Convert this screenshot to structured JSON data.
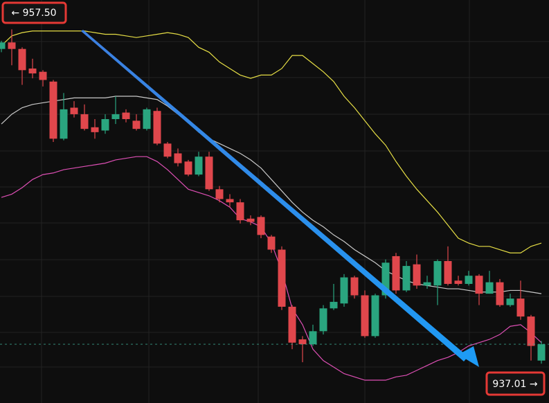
{
  "chart_data": {
    "type": "candlestick",
    "up_color": "#2aa57f",
    "down_color": "#e0474c",
    "open": [
      956.3,
      956.7,
      956.3,
      955.1,
      954.9,
      954.3,
      950.8,
      952.7,
      952.3,
      951.5,
      951.3,
      952.0,
      952.4,
      951.9,
      951.4,
      952.5,
      950.5,
      949.9,
      949.4,
      948.6,
      949.7,
      947.7,
      947.1,
      946.9,
      945.9,
      946.0,
      944.8,
      944.0,
      940.5,
      938.5,
      938.2,
      939.0,
      940.4,
      940.7,
      942.3,
      941.2,
      938.7,
      941.2,
      943.6,
      941.5,
      943.1,
      941.8,
      941.8,
      943.3,
      942.1,
      941.9,
      942.4,
      941.3,
      942.0,
      940.6,
      941.0,
      939.9,
      937.2
    ],
    "high": [
      956.8,
      957.5,
      956.4,
      955.7,
      955.0,
      954.4,
      953.6,
      953.1,
      952.9,
      952.0,
      952.3,
      953.4,
      952.6,
      952.3,
      952.7,
      952.7,
      950.6,
      950.2,
      949.5,
      950.0,
      950.0,
      947.9,
      947.4,
      947.1,
      946.1,
      946.1,
      944.9,
      944.2,
      940.6,
      938.7,
      939.4,
      940.6,
      941.9,
      942.5,
      942.4,
      941.5,
      941.3,
      943.4,
      943.8,
      943.3,
      943.7,
      942.4,
      943.4,
      944.2,
      942.4,
      942.7,
      942.5,
      942.7,
      942.2,
      941.3,
      942.1,
      940.0,
      938.4
    ],
    "low": [
      956.1,
      955.3,
      954.1,
      954.5,
      954.0,
      950.6,
      950.7,
      952.1,
      951.3,
      950.8,
      951.1,
      951.7,
      951.8,
      951.3,
      951.3,
      950.4,
      949.6,
      949.1,
      948.5,
      948.5,
      947.6,
      946.9,
      946.6,
      945.6,
      945.5,
      944.7,
      943.8,
      940.3,
      937.9,
      937.1,
      938.1,
      938.8,
      940.3,
      940.5,
      941.0,
      938.6,
      938.6,
      941.0,
      941.3,
      941.4,
      941.6,
      941.6,
      940.6,
      941.8,
      941.8,
      941.8,
      940.6,
      941.3,
      940.5,
      940.5,
      939.7,
      937.2,
      937.01
    ],
    "close": [
      956.7,
      956.3,
      955.0,
      954.8,
      954.4,
      950.8,
      952.6,
      952.3,
      951.4,
      951.2,
      952.0,
      952.3,
      952.0,
      951.4,
      952.6,
      950.5,
      949.7,
      949.3,
      948.6,
      949.7,
      947.7,
      947.1,
      946.9,
      945.8,
      945.7,
      944.9,
      944.0,
      940.5,
      938.3,
      938.2,
      939.0,
      940.4,
      940.8,
      942.3,
      941.2,
      938.7,
      941.2,
      943.2,
      941.5,
      943.0,
      941.8,
      942.0,
      943.3,
      941.9,
      941.9,
      942.4,
      941.3,
      942.0,
      940.6,
      941.0,
      939.9,
      938.1,
      938.2
    ],
    "bands": [
      {
        "color": "#e6de45",
        "values": [
          956.5,
          957.1,
          957.3,
          957.4,
          957.4,
          957.4,
          957.4,
          957.4,
          957.4,
          957.3,
          957.2,
          957.2,
          957.1,
          957.0,
          957.1,
          957.2,
          957.3,
          957.2,
          957.0,
          956.4,
          956.1,
          955.5,
          955.1,
          954.7,
          954.5,
          954.7,
          954.7,
          955.1,
          955.9,
          955.9,
          955.4,
          954.9,
          954.3,
          953.4,
          952.7,
          951.9,
          951.1,
          950.4,
          949.4,
          948.5,
          947.7,
          947.0,
          946.3,
          945.5,
          944.7,
          944.4,
          944.2,
          944.2,
          944.0,
          943.8,
          943.8,
          944.2,
          944.4
        ]
      },
      {
        "color": "#c9c9c9",
        "values": [
          951.7,
          952.3,
          952.7,
          952.9,
          953.0,
          953.1,
          953.2,
          953.3,
          953.3,
          953.3,
          953.3,
          953.4,
          953.4,
          953.4,
          953.3,
          953.2,
          952.8,
          952.3,
          951.8,
          951.2,
          950.8,
          950.5,
          950.2,
          949.9,
          949.5,
          949.0,
          948.3,
          947.6,
          946.9,
          946.3,
          945.8,
          945.4,
          944.9,
          944.5,
          944.0,
          943.6,
          943.2,
          942.7,
          942.4,
          942.1,
          941.9,
          941.8,
          941.7,
          941.6,
          941.6,
          941.5,
          941.4,
          941.4,
          941.4,
          941.5,
          941.5,
          941.4,
          941.3
        ]
      },
      {
        "color": "#dd4fb4",
        "values": [
          947.2,
          947.4,
          947.8,
          948.3,
          948.6,
          948.7,
          948.9,
          949.0,
          949.1,
          949.2,
          949.3,
          949.5,
          949.6,
          949.7,
          949.7,
          949.4,
          948.9,
          948.3,
          947.7,
          947.5,
          947.3,
          947.0,
          946.6,
          945.9,
          945.7,
          945.4,
          944.4,
          942.7,
          940.4,
          939.4,
          937.9,
          937.2,
          936.8,
          936.4,
          936.2,
          936.0,
          936.0,
          936.0,
          936.2,
          936.3,
          936.6,
          936.9,
          937.2,
          937.4,
          937.7,
          938.1,
          938.3,
          938.5,
          938.8,
          939.3,
          939.4,
          938.9,
          938.3
        ]
      }
    ],
    "ylim": [
      934.6,
      959.3
    ],
    "annotations": [
      "← 957.50",
      "937.01 →"
    ]
  }
}
